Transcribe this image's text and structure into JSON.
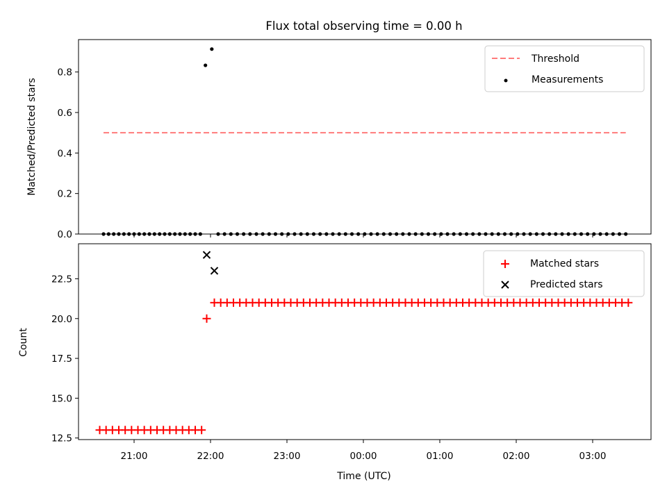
{
  "chart_data": {
    "type": "scatter",
    "title": "Flux total observing time = 0.00 h",
    "xlabel": "Time (UTC)",
    "x_tick_labels": [
      "21:00",
      "22:00",
      "23:00",
      "00:00",
      "01:00",
      "02:00",
      "03:00"
    ],
    "top_panel": {
      "ylabel": "Matched/Predicted stars",
      "ylim": [
        0.0,
        0.96
      ],
      "y_tick_labels": [
        "0.0",
        "0.2",
        "0.4",
        "0.6",
        "0.8"
      ],
      "threshold": {
        "name": "Threshold",
        "value": 0.5,
        "x_start": "20:36",
        "x_end": "03:26",
        "color": "#ff7b7b",
        "style": "dashed"
      },
      "measurements": {
        "name": "Measurements",
        "color": "#000000",
        "low_run_1": {
          "start": "20:36",
          "end": "21:52",
          "step_min": 4,
          "value": 0.0
        },
        "peaks": [
          {
            "x": "21:56",
            "y": 0.833
          },
          {
            "x": "22:01",
            "y": 0.913
          }
        ],
        "low_run_2": {
          "start": "22:06",
          "end": "03:26",
          "step_min": 5,
          "value": 0.0
        }
      }
    },
    "bottom_panel": {
      "ylabel": "Count",
      "ylim": [
        12.4,
        24.7
      ],
      "y_tick_labels": [
        "12.5",
        "15.0",
        "17.5",
        "20.0",
        "22.5"
      ],
      "matched": {
        "name": "Matched stars",
        "color": "#ff0000",
        "run_1": {
          "start": "20:33",
          "end": "21:53",
          "step_min": 5,
          "value": 13
        },
        "single": {
          "x": "21:57",
          "y": 20
        },
        "run_2": {
          "start": "22:03",
          "end": "03:28",
          "step_min": 5,
          "value": 21
        }
      },
      "predicted": {
        "name": "Predicted stars",
        "color": "#000000",
        "points": [
          {
            "x": "21:57",
            "y": 24
          },
          {
            "x": "22:03",
            "y": 23
          }
        ]
      }
    }
  }
}
